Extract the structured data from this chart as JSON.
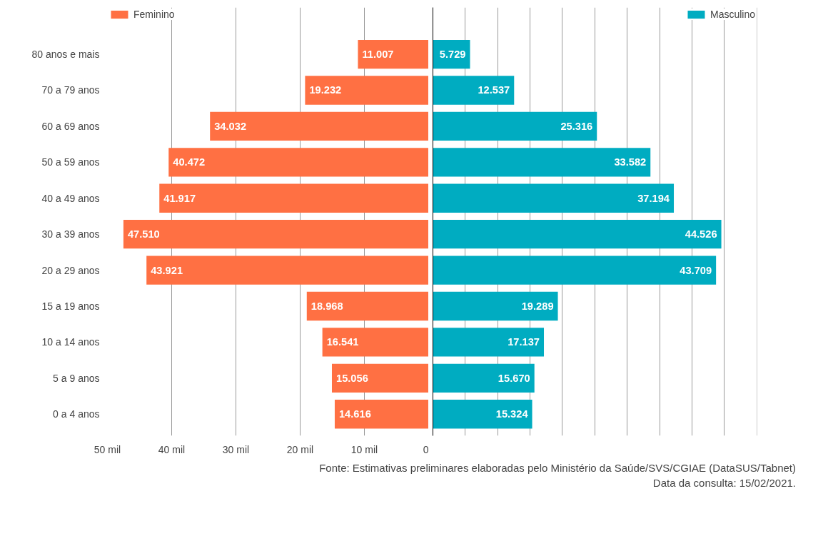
{
  "chart_data": [
    {
      "type": "bar",
      "orientation": "horizontal",
      "categories": [
        "80 anos e mais",
        "70 a 79 anos",
        "60 a 69 anos",
        "50 a 59 anos",
        "40 a 49 anos",
        "30 a 39 anos",
        "20 a 29 anos",
        "15 a 19 anos",
        "10 a 14 anos",
        "5 a 9 anos",
        "0 a 4 anos"
      ],
      "series": [
        {
          "name": "Feminino",
          "color": "#ff7043",
          "values": [
            11.007,
            19.232,
            34.032,
            40.472,
            41.917,
            47.51,
            43.921,
            18.968,
            16.541,
            15.056,
            14.616
          ],
          "value_labels": [
            "11.007",
            "19.232",
            "34.032",
            "40.472",
            "41.917",
            "47.510",
            "43.921",
            "18.968",
            "16.541",
            "15.056",
            "14.616"
          ]
        }
      ],
      "xlim": [
        50,
        0
      ],
      "xticks": [
        {
          "value": 50,
          "label": "50 mil"
        },
        {
          "value": 40,
          "label": "40 mil"
        },
        {
          "value": 30,
          "label": "30 mil"
        },
        {
          "value": 20,
          "label": "20 mil"
        },
        {
          "value": 10,
          "label": "10 mil"
        },
        0
      ],
      "grid": "x",
      "legend": "top left"
    },
    {
      "type": "bar",
      "orientation": "horizontal",
      "categories": [
        null,
        null,
        null,
        null,
        null,
        null,
        null,
        null,
        null,
        null,
        null
      ],
      "series": [
        {
          "name": "Masculino",
          "color": "#00acc1",
          "values": [
            5.729,
            12.537,
            25.316,
            33.582,
            37.194,
            44.526,
            43.709,
            19.289,
            17.137,
            15.67,
            15.324
          ],
          "value_labels": [
            "5.729",
            "12.537",
            "25.316",
            "33.582",
            "37.194",
            "44.526",
            "43.709",
            "19.289",
            "17.137",
            "15.670",
            "15.324"
          ]
        }
      ],
      "grid": "x",
      "legend": "top right",
      "tick_labels": false,
      "annotations": [
        "Fonte: Estimativas preliminares elaboradas pelo Ministério da Saúde/SVS/CGIAE (DataSUS/Tabnet)",
        "Data da consulta: 15/02/2021."
      ]
    }
  ]
}
